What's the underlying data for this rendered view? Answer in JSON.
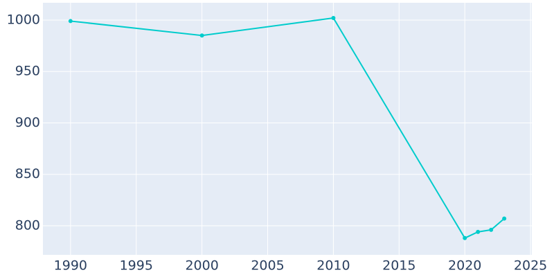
{
  "chart_data": {
    "type": "line",
    "x": [
      1990,
      2000,
      2010,
      2020,
      2021,
      2022,
      2023
    ],
    "series": [
      {
        "color": "#00cccc",
        "values": [
          999,
          985,
          1002,
          788,
          794,
          796,
          807
        ]
      }
    ],
    "xlim": [
      1987.9,
      2025.1
    ],
    "xticks": [
      1990,
      1995,
      2000,
      2005,
      2010,
      2015,
      2020,
      2025
    ],
    "ylim": [
      771.7,
      1016.8
    ],
    "yticks": [
      800,
      850,
      900,
      950,
      1000
    ],
    "grid": true
  }
}
